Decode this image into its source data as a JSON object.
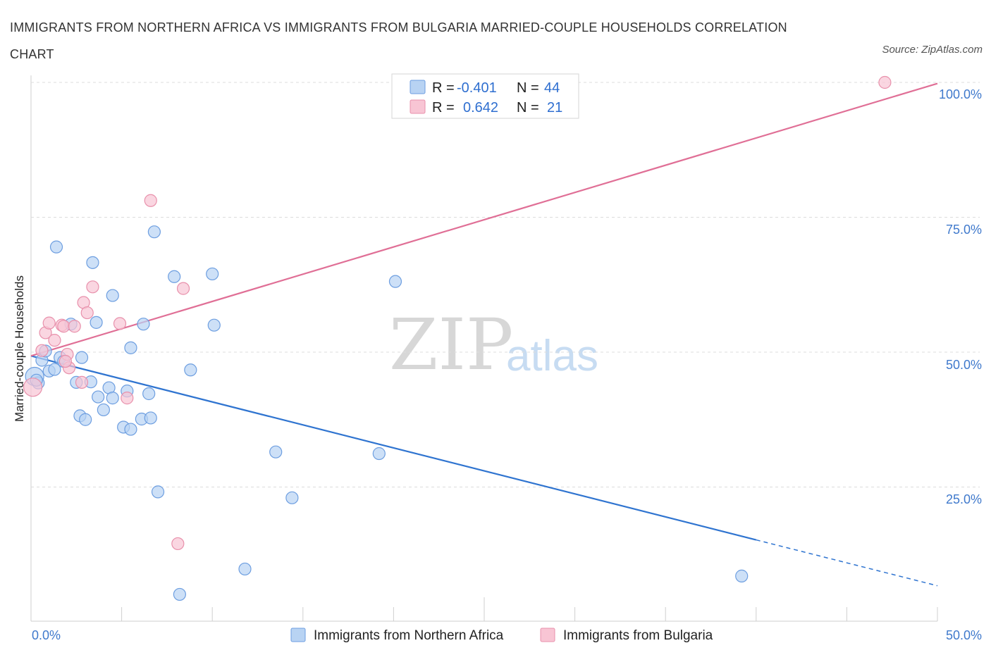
{
  "title": "IMMIGRANTS FROM NORTHERN AFRICA VS IMMIGRANTS FROM BULGARIA MARRIED-COUPLE HOUSEHOLDS CORRELATION CHART",
  "source": "Source: ZipAtlas.com",
  "watermark": {
    "zip": "ZIP",
    "atlas": "atlas"
  },
  "legend": {
    "rows": [
      {
        "r_label": "R =",
        "r_value": "-0.401",
        "n_label": "N =",
        "n_value": "44"
      },
      {
        "r_label": "R =",
        "r_value": "0.642",
        "n_label": "N =",
        "n_value": "21"
      }
    ]
  },
  "colors": {
    "blue_fill": "#b8d3f3",
    "blue_stroke": "#6d9ee0",
    "blue_line": "#2f74d0",
    "pink_fill": "#f8c5d4",
    "pink_stroke": "#e890ab",
    "pink_line": "#e06f96",
    "tick": "#3f79cc"
  },
  "chart_data": {
    "type": "scatter",
    "title": "IMMIGRANTS FROM NORTHERN AFRICA VS IMMIGRANTS FROM BULGARIA MARRIED-COUPLE HOUSEHOLDS CORRELATION CHART",
    "xlabel": "",
    "ylabel": "Married-couple Households",
    "xlim": [
      0,
      50
    ],
    "ylim": [
      0,
      100
    ],
    "x_tick_labels": [
      "0.0%",
      "50.0%"
    ],
    "y_tick_labels": [
      "100.0%",
      "75.0%",
      "50.0%",
      "25.0%"
    ],
    "y_ticks": [
      100,
      75,
      50,
      25
    ],
    "series": [
      {
        "name": "Immigrants from Northern Africa",
        "color": "blue",
        "R": -0.401,
        "N": 44,
        "trend": {
          "x0": 0,
          "y0": 49.3,
          "x1": 40,
          "y1": 15.2,
          "dash_to_x": 50,
          "dash_to_y": 6.7
        },
        "points": [
          [
            0.2,
            45.5
          ],
          [
            0.4,
            44.3
          ],
          [
            0.6,
            48.5
          ],
          [
            0.8,
            50.2
          ],
          [
            1.0,
            46.5
          ],
          [
            1.3,
            46.8
          ],
          [
            1.6,
            49.0
          ],
          [
            1.8,
            48.3
          ],
          [
            2.2,
            55.2
          ],
          [
            2.8,
            49.0
          ],
          [
            3.3,
            44.5
          ],
          [
            1.4,
            69.5
          ],
          [
            3.4,
            66.6
          ],
          [
            4.5,
            60.5
          ],
          [
            2.5,
            44.4
          ],
          [
            3.7,
            41.7
          ],
          [
            4.3,
            43.4
          ],
          [
            4.5,
            41.5
          ],
          [
            5.3,
            42.8
          ],
          [
            6.2,
            55.2
          ],
          [
            5.5,
            50.8
          ],
          [
            2.7,
            38.2
          ],
          [
            3.0,
            37.5
          ],
          [
            4.0,
            39.3
          ],
          [
            5.1,
            36.1
          ],
          [
            5.5,
            35.7
          ],
          [
            6.1,
            37.6
          ],
          [
            6.6,
            37.8
          ],
          [
            6.5,
            42.3
          ],
          [
            6.8,
            72.3
          ],
          [
            7.9,
            64.0
          ],
          [
            8.8,
            46.7
          ],
          [
            10.0,
            64.5
          ],
          [
            10.1,
            55.0
          ],
          [
            13.5,
            31.5
          ],
          [
            14.4,
            23.0
          ],
          [
            19.2,
            31.2
          ],
          [
            20.1,
            63.1
          ],
          [
            7.0,
            24.1
          ],
          [
            11.8,
            9.8
          ],
          [
            8.2,
            5.1
          ],
          [
            39.2,
            8.5
          ],
          [
            0.3,
            44.8
          ],
          [
            3.6,
            55.5
          ]
        ]
      },
      {
        "name": "Immigrants from Bulgaria",
        "color": "pink",
        "R": 0.642,
        "N": 21,
        "trend": {
          "x0": 0,
          "y0": 49.3,
          "x1": 50,
          "y1": 99.8
        },
        "points": [
          [
            0.1,
            43.5
          ],
          [
            0.6,
            50.3
          ],
          [
            0.8,
            53.6
          ],
          [
            1.0,
            55.4
          ],
          [
            1.3,
            52.2
          ],
          [
            1.7,
            55.0
          ],
          [
            1.8,
            54.8
          ],
          [
            2.0,
            49.6
          ],
          [
            2.1,
            47.1
          ],
          [
            2.4,
            54.8
          ],
          [
            2.9,
            59.2
          ],
          [
            3.1,
            57.3
          ],
          [
            2.8,
            44.4
          ],
          [
            3.4,
            62.1
          ],
          [
            4.9,
            55.3
          ],
          [
            5.3,
            41.5
          ],
          [
            6.6,
            78.1
          ],
          [
            8.4,
            61.8
          ],
          [
            8.1,
            14.5
          ],
          [
            47.1,
            100.0
          ],
          [
            1.9,
            48.3
          ]
        ]
      }
    ]
  }
}
